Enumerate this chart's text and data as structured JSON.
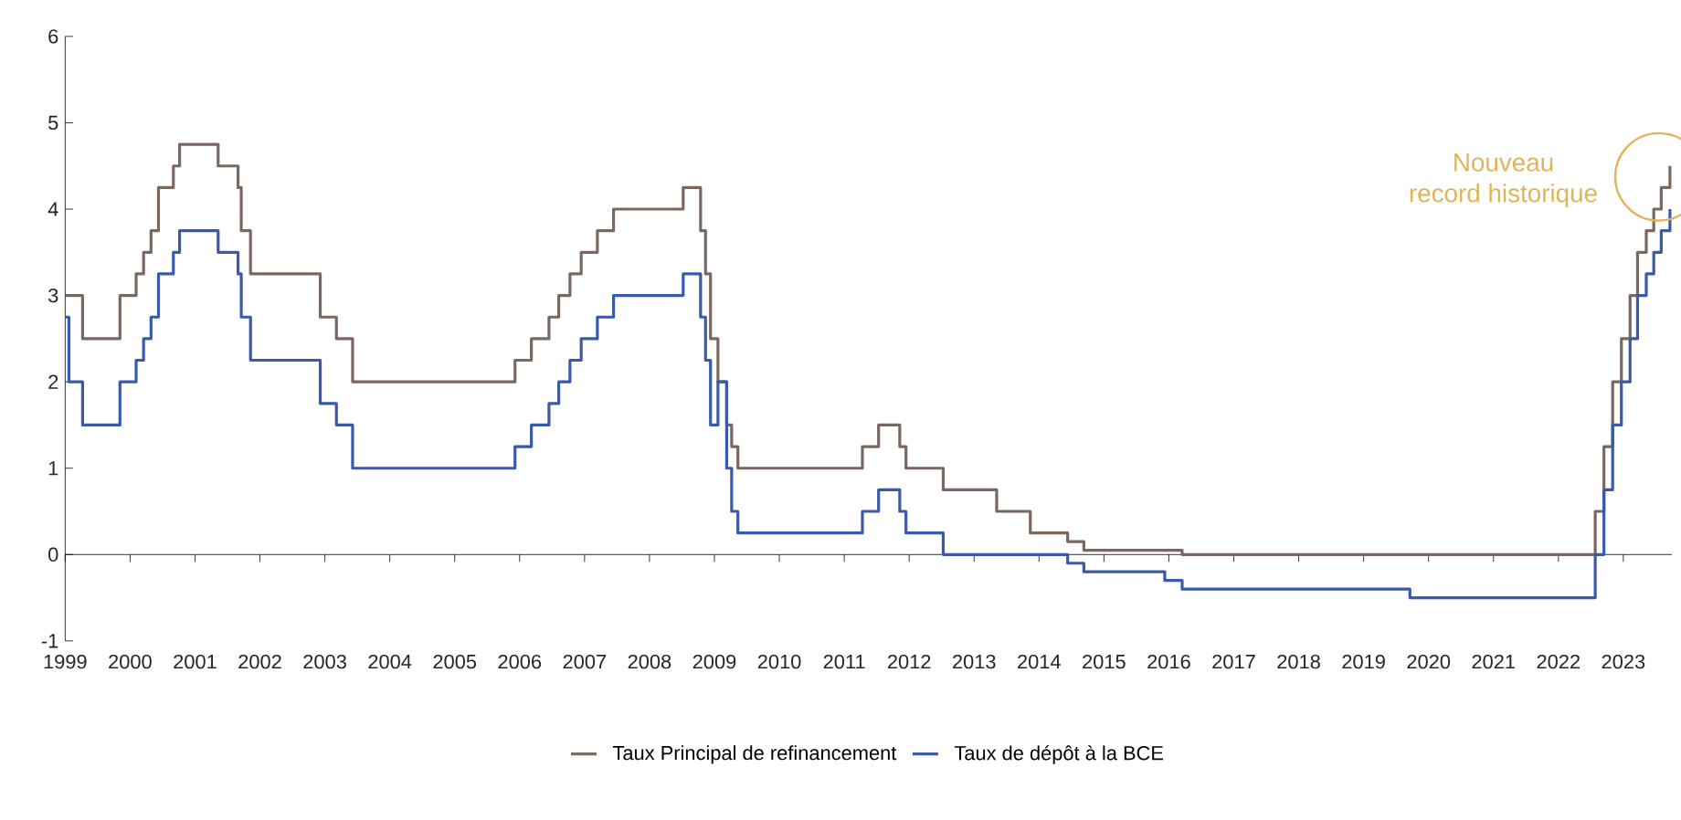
{
  "chart_data": {
    "type": "step",
    "xlim": [
      "1999-01",
      "2023-10"
    ],
    "ylim": [
      -1,
      6
    ],
    "xticks": [
      "1999",
      "2000",
      "2001",
      "2002",
      "2003",
      "2004",
      "2005",
      "2006",
      "2007",
      "2008",
      "2009",
      "2010",
      "2011",
      "2012",
      "2013",
      "2014",
      "2015",
      "2016",
      "2017",
      "2018",
      "2019",
      "2020",
      "2021",
      "2022",
      "2023"
    ],
    "yticks": [
      -1,
      0,
      1,
      2,
      3,
      4,
      5,
      6
    ],
    "legend": "bottom",
    "series": [
      {
        "name": "Taux Principal de refinancement",
        "color": "#7a6860",
        "x": [
          "1999-01-04",
          "1999-04-09",
          "1999-11-05",
          "2000-02-04",
          "2000-03-17",
          "2000-04-28",
          "2000-06-09",
          "2000-09-01",
          "2000-10-06",
          "2001-05-11",
          "2001-08-31",
          "2001-09-18",
          "2001-11-09",
          "2002-12-06",
          "2003-03-07",
          "2003-06-06",
          "2005-12-06",
          "2006-03-08",
          "2006-06-15",
          "2006-08-09",
          "2006-10-11",
          "2006-12-13",
          "2007-03-14",
          "2007-06-13",
          "2008-07-09",
          "2008-10-15",
          "2008-11-12",
          "2008-12-10",
          "2009-01-21",
          "2009-03-11",
          "2009-04-08",
          "2009-05-13",
          "2011-04-13",
          "2011-07-13",
          "2011-11-09",
          "2011-12-14",
          "2012-07-11",
          "2013-05-08",
          "2013-11-13",
          "2014-06-11",
          "2014-09-10",
          "2016-03-16",
          "2022-07-27",
          "2022-09-14",
          "2022-11-02",
          "2022-12-21",
          "2023-02-08",
          "2023-03-22",
          "2023-05-10",
          "2023-06-21",
          "2023-08-02",
          "2023-09-20"
        ],
        "values": [
          3.0,
          2.5,
          3.0,
          3.25,
          3.5,
          3.75,
          4.25,
          4.5,
          4.75,
          4.5,
          4.25,
          3.75,
          3.25,
          2.75,
          2.5,
          2.0,
          2.25,
          2.5,
          2.75,
          3.0,
          3.25,
          3.5,
          3.75,
          4.0,
          4.25,
          3.75,
          3.25,
          2.5,
          2.0,
          1.5,
          1.25,
          1.0,
          1.25,
          1.5,
          1.25,
          1.0,
          0.75,
          0.5,
          0.25,
          0.15,
          0.05,
          0.0,
          0.5,
          1.25,
          2.0,
          2.5,
          3.0,
          3.5,
          3.75,
          4.0,
          4.25,
          4.5
        ]
      },
      {
        "name": "Taux de dépôt à la BCE",
        "color": "#3a5aa8",
        "x": [
          "1999-01-04",
          "1999-01-22",
          "1999-04-09",
          "1999-11-05",
          "2000-02-04",
          "2000-03-17",
          "2000-04-28",
          "2000-06-09",
          "2000-09-01",
          "2000-10-06",
          "2001-05-11",
          "2001-08-31",
          "2001-09-18",
          "2001-11-09",
          "2002-12-06",
          "2003-03-07",
          "2003-06-06",
          "2005-12-06",
          "2006-03-08",
          "2006-06-15",
          "2006-08-09",
          "2006-10-11",
          "2006-12-13",
          "2007-03-14",
          "2007-06-13",
          "2008-07-09",
          "2008-10-15",
          "2008-11-12",
          "2008-12-10",
          "2009-01-21",
          "2009-03-11",
          "2009-04-08",
          "2009-05-13",
          "2011-04-13",
          "2011-07-13",
          "2011-11-09",
          "2011-12-14",
          "2012-07-11",
          "2014-06-11",
          "2014-09-10",
          "2015-12-09",
          "2016-03-16",
          "2019-09-18",
          "2022-07-27",
          "2022-09-14",
          "2022-11-02",
          "2022-12-21",
          "2023-02-08",
          "2023-03-22",
          "2023-05-10",
          "2023-06-21",
          "2023-08-02",
          "2023-09-20"
        ],
        "values": [
          2.75,
          2.0,
          1.5,
          2.0,
          2.25,
          2.5,
          2.75,
          3.25,
          3.5,
          3.75,
          3.5,
          3.25,
          2.75,
          2.25,
          1.75,
          1.5,
          1.0,
          1.25,
          1.5,
          1.75,
          2.0,
          2.25,
          2.5,
          2.75,
          3.0,
          3.25,
          2.75,
          2.25,
          1.5,
          2.0,
          1.0,
          0.5,
          0.25,
          0.5,
          0.75,
          0.5,
          0.25,
          0.0,
          -0.1,
          -0.2,
          -0.3,
          -0.4,
          -0.5,
          0.0,
          0.75,
          1.5,
          2.0,
          2.5,
          3.0,
          3.25,
          3.5,
          3.75,
          4.0
        ]
      }
    ],
    "annotations": [
      "Nouveau",
      {
        "text": "record historique",
        "x": "2023-09-20",
        "y": 4.5
      }
    ]
  }
}
